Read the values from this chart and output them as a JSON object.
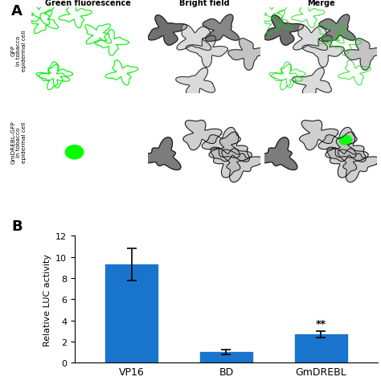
{
  "panel_A_label": "A",
  "panel_B_label": "B",
  "col_labels": [
    "Green fluorescence",
    "Bright field",
    "Merge"
  ],
  "row_label_top": "GFP\nin tobacco\nepidermal cell",
  "row_label_bottom": "GmDREBL-GFP\nin tobacco\nepidermal cell",
  "bar_labels": [
    "VP16",
    "BD",
    "GmDREBL"
  ],
  "bar_values": [
    9.3,
    1.0,
    2.65
  ],
  "bar_errors": [
    1.5,
    0.25,
    0.3
  ],
  "bar_color": "#1874CD",
  "ylabel": "Relative LUC activity",
  "ylim": [
    0,
    12
  ],
  "yticks": [
    0,
    2,
    4,
    6,
    8,
    10,
    12
  ],
  "significance": "**",
  "sig_bar_index": 2,
  "background_color": "#ffffff",
  "bar_width": 0.55
}
